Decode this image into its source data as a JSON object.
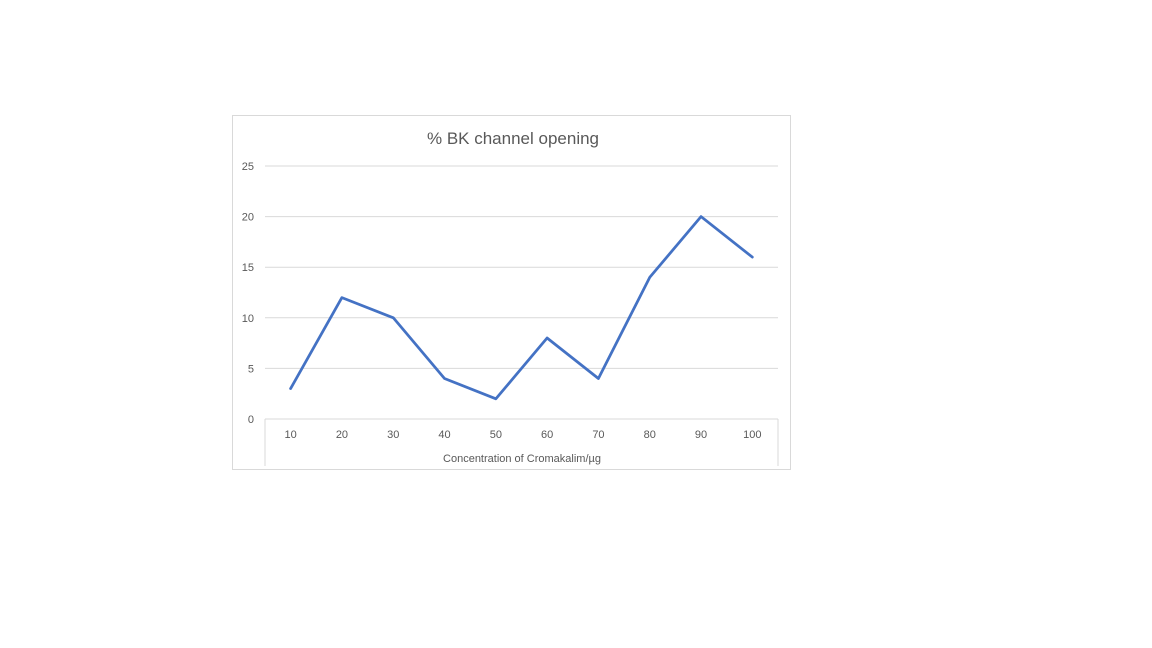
{
  "chart_data": {
    "type": "line",
    "title": "% BK channel opening",
    "xlabel": "Concentration of Cromakalim/µg",
    "ylabel": "",
    "categories": [
      "10",
      "20",
      "30",
      "40",
      "50",
      "60",
      "70",
      "80",
      "90",
      "100"
    ],
    "series": [
      {
        "values": [
          3,
          12,
          10,
          4,
          2,
          8,
          4,
          14,
          20,
          16
        ],
        "color": "#4472c4"
      }
    ],
    "ylim": [
      0,
      25
    ],
    "yticks": [
      "0",
      "5",
      "10",
      "15",
      "20",
      "25"
    ],
    "grid": true,
    "legend": "none"
  }
}
